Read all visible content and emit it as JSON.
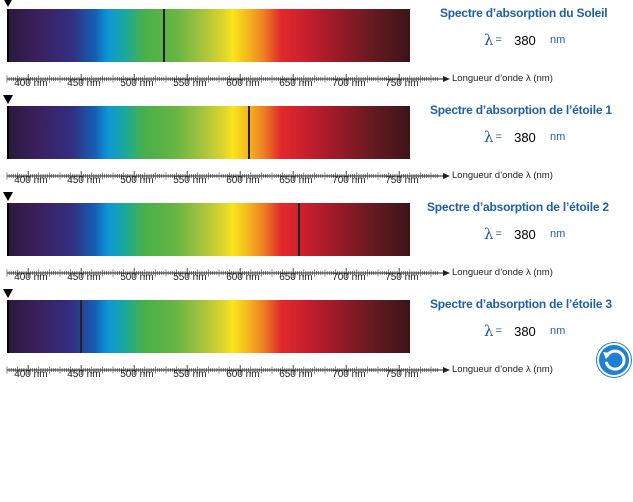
{
  "ticks": [
    "400 nm",
    "450 nm",
    "500 nm",
    "550 nm",
    "600 nm",
    "650 nm",
    "700 nm",
    "750 nm"
  ],
  "axis_label": "Longueur d’onde λ (nm)",
  "colors": {
    "title_blue": "#1f5fa8",
    "reset_blue": "#1f7fd0"
  },
  "panels": [
    {
      "title": "Spectre d’absorption du Soleil",
      "lambda_symbol": "λ",
      "equals": "=",
      "value": "380",
      "unit": "nm",
      "absorption_nm": 528
    },
    {
      "title": "Spectre d’absorption de l’étoile 1",
      "lambda_symbol": "λ",
      "equals": "=",
      "value": "380",
      "unit": "nm",
      "absorption_nm": 608
    },
    {
      "title": "Spectre d’absorption de l’étoile 2",
      "lambda_symbol": "λ",
      "equals": "=",
      "value": "380",
      "unit": "nm",
      "absorption_nm": 655
    },
    {
      "title": "Spectre d’absorption de l’étoile 3",
      "lambda_symbol": "λ",
      "equals": "=",
      "value": "380",
      "unit": "nm",
      "absorption_nm": 450
    }
  ],
  "reset_icon": "rotate-left-icon"
}
